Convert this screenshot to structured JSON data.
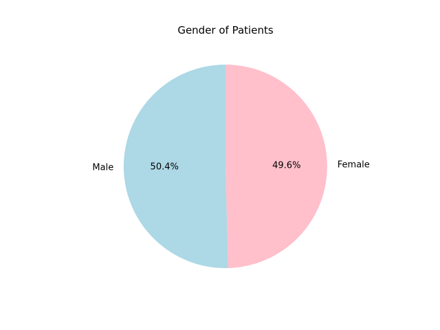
{
  "chart_data": {
    "type": "pie",
    "title": "Gender of Patients",
    "categories": [
      "Female",
      "Male"
    ],
    "values": [
      49.6,
      50.4
    ],
    "percent_labels": [
      "49.6%",
      "50.4%"
    ],
    "colors": [
      "#ffc0cb",
      "#add8e6"
    ],
    "start_angle_deg": 90,
    "direction": "clockwise",
    "legend": "none",
    "grid": false
  }
}
